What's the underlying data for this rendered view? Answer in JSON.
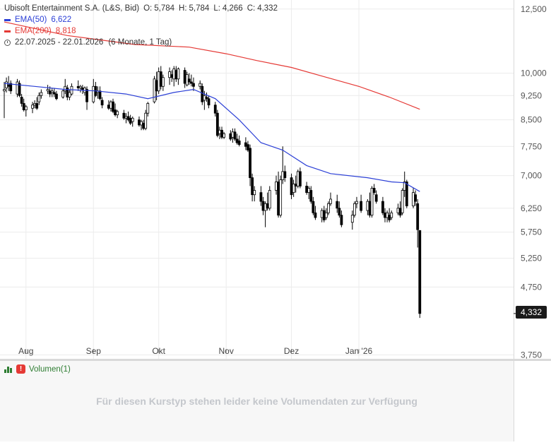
{
  "legend": {
    "title": "Ubisoft Entertainment S.A. (L&S, Bid)",
    "o_label": "O:",
    "o_value": "5,784",
    "h_label": "H:",
    "h_value": "5,784",
    "l_label": "L:",
    "l_value": "4,266",
    "c_label": "C:",
    "c_value": "4,332",
    "ema50_label": "EMA(50)",
    "ema50_value": "6,622",
    "ema200_label": "EMA(200)",
    "ema200_value": "8,818",
    "range": "22.07.2025 - 22.01.2026",
    "range_detail": "(6 Monate, 1 Tag)"
  },
  "last_price": "4,332",
  "volume_panel": {
    "label": "Volumen(1)",
    "message": "Für diesen Kurstyp stehen leider keine Volumendaten zur Verfügung"
  },
  "colors": {
    "ema50": "#2b3fd6",
    "ema200": "#e53935",
    "candle": "#000000",
    "grid": "#ececec"
  },
  "chart_data": {
    "type": "candlestick",
    "y_scale": "log",
    "ylim": [
      3.7,
      12.9
    ],
    "y_ticks": [
      "12,500",
      "10,000",
      "9,250",
      "8,500",
      "7,750",
      "7,000",
      "6,250",
      "5,750",
      "5,250",
      "4,750",
      "3,750"
    ],
    "y_tick_values": [
      12.5,
      10.0,
      9.25,
      8.5,
      7.75,
      7.0,
      6.25,
      5.75,
      5.25,
      4.75,
      3.75
    ],
    "x_ticks": [
      "Aug",
      "Sep",
      "Okt",
      "Nov",
      "Dez",
      "Jan '26"
    ],
    "x_tick_dates": [
      "2025-08-01",
      "2025-09-01",
      "2025-10-01",
      "2025-11-01",
      "2025-12-01",
      "2026-01-01"
    ],
    "date_range": [
      "2025-07-22",
      "2026-01-22"
    ],
    "candles": [
      [
        "2025-07-22",
        9.4,
        9.7,
        8.55,
        9.45
      ],
      [
        "2025-07-23",
        9.5,
        9.85,
        9.35,
        9.7
      ],
      [
        "2025-07-24",
        9.6,
        9.9,
        9.4,
        9.55
      ],
      [
        "2025-07-25",
        9.65,
        9.75,
        9.3,
        9.4
      ],
      [
        "2025-07-28",
        9.3,
        9.8,
        9.2,
        9.7
      ],
      [
        "2025-07-29",
        9.65,
        9.75,
        9.2,
        9.25
      ],
      [
        "2025-07-30",
        9.2,
        9.3,
        8.9,
        9.0
      ],
      [
        "2025-07-31",
        9.0,
        9.15,
        8.75,
        8.8
      ],
      [
        "2025-08-01",
        8.8,
        8.95,
        8.6,
        8.9
      ],
      [
        "2025-08-04",
        8.85,
        9.05,
        8.7,
        8.95
      ],
      [
        "2025-08-05",
        8.95,
        9.1,
        8.85,
        9.0
      ],
      [
        "2025-08-06",
        9.0,
        9.2,
        8.8,
        8.85
      ],
      [
        "2025-08-07",
        9.05,
        9.35,
        8.95,
        9.25
      ],
      [
        "2025-08-08",
        9.25,
        9.45,
        9.15,
        9.35
      ],
      [
        "2025-08-11",
        9.4,
        9.6,
        9.3,
        9.45
      ],
      [
        "2025-08-12",
        9.4,
        9.55,
        9.2,
        9.3
      ],
      [
        "2025-08-13",
        9.35,
        9.5,
        9.2,
        9.4
      ],
      [
        "2025-08-14",
        9.35,
        9.5,
        9.2,
        9.3
      ],
      [
        "2025-08-15",
        9.3,
        9.4,
        9.1,
        9.15
      ],
      [
        "2025-08-18",
        9.2,
        9.45,
        9.15,
        9.4
      ],
      [
        "2025-08-19",
        9.4,
        9.8,
        9.3,
        9.55
      ],
      [
        "2025-08-20",
        9.5,
        9.6,
        9.1,
        9.2
      ],
      [
        "2025-08-21",
        9.2,
        9.45,
        9.1,
        9.35
      ],
      [
        "2025-08-22",
        9.3,
        9.65,
        9.25,
        9.55
      ],
      [
        "2025-08-25",
        9.55,
        9.75,
        9.4,
        9.5
      ],
      [
        "2025-08-26",
        9.5,
        9.6,
        9.35,
        9.55
      ],
      [
        "2025-08-27",
        9.5,
        9.6,
        9.3,
        9.45
      ],
      [
        "2025-08-28",
        9.35,
        9.55,
        9.25,
        9.5
      ],
      [
        "2025-08-29",
        9.45,
        9.55,
        8.8,
        9.05
      ],
      [
        "2025-09-01",
        9.05,
        9.8,
        9.0,
        9.55
      ],
      [
        "2025-09-02",
        9.55,
        9.7,
        9.2,
        9.25
      ],
      [
        "2025-09-03",
        9.35,
        9.55,
        9.15,
        9.4
      ],
      [
        "2025-09-04",
        9.4,
        9.55,
        9.1,
        9.15
      ],
      [
        "2025-09-05",
        9.1,
        9.2,
        8.85,
        8.95
      ],
      [
        "2025-09-08",
        8.95,
        9.1,
        8.8,
        8.85
      ],
      [
        "2025-09-09",
        8.85,
        9.1,
        8.75,
        9.05
      ],
      [
        "2025-09-10",
        9.05,
        9.15,
        8.7,
        8.75
      ],
      [
        "2025-09-11",
        8.8,
        9.0,
        8.6,
        8.65
      ],
      [
        "2025-09-12",
        8.65,
        8.8,
        8.55,
        8.75
      ],
      [
        "2025-09-15",
        8.7,
        8.8,
        8.5,
        8.55
      ],
      [
        "2025-09-16",
        8.55,
        8.7,
        8.4,
        8.6
      ],
      [
        "2025-09-17",
        8.6,
        8.75,
        8.45,
        8.5
      ],
      [
        "2025-09-18",
        8.55,
        8.65,
        8.35,
        8.4
      ],
      [
        "2025-09-19",
        8.45,
        8.6,
        8.3,
        8.55
      ],
      [
        "2025-09-22",
        8.5,
        8.6,
        8.3,
        8.35
      ],
      [
        "2025-09-23",
        8.35,
        8.5,
        8.2,
        8.45
      ],
      [
        "2025-09-24",
        8.4,
        8.5,
        8.2,
        8.25
      ],
      [
        "2025-09-25",
        8.25,
        8.8,
        8.2,
        8.7
      ],
      [
        "2025-09-26",
        8.7,
        9.05,
        8.6,
        9.0
      ],
      [
        "2025-09-29",
        9.05,
        9.9,
        9.0,
        9.8
      ],
      [
        "2025-09-30",
        9.75,
        10.05,
        9.1,
        9.4
      ],
      [
        "2025-10-01",
        9.4,
        10.2,
        9.3,
        10.05
      ],
      [
        "2025-10-02",
        10.05,
        10.25,
        9.45,
        9.55
      ],
      [
        "2025-10-03",
        9.55,
        9.95,
        9.4,
        9.85
      ],
      [
        "2025-10-06",
        9.85,
        10.2,
        9.6,
        10.05
      ],
      [
        "2025-10-07",
        9.95,
        10.1,
        9.7,
        9.85
      ],
      [
        "2025-10-08",
        9.8,
        10.25,
        9.55,
        10.15
      ],
      [
        "2025-10-09",
        10.1,
        10.25,
        9.7,
        9.8
      ],
      [
        "2025-10-10",
        9.8,
        10.2,
        9.6,
        10.15
      ],
      [
        "2025-10-13",
        10.1,
        10.2,
        9.5,
        9.65
      ],
      [
        "2025-10-14",
        9.6,
        10.05,
        9.55,
        9.95
      ],
      [
        "2025-10-15",
        9.8,
        10.0,
        9.6,
        9.7
      ],
      [
        "2025-10-16",
        9.7,
        9.95,
        9.55,
        9.65
      ],
      [
        "2025-10-17",
        9.65,
        9.85,
        9.4,
        9.55
      ],
      [
        "2025-10-20",
        9.55,
        9.75,
        9.45,
        9.65
      ],
      [
        "2025-10-21",
        9.55,
        9.65,
        8.95,
        9.05
      ],
      [
        "2025-10-22",
        9.1,
        9.4,
        8.8,
        9.25
      ],
      [
        "2025-10-23",
        9.2,
        9.35,
        9.05,
        9.15
      ],
      [
        "2025-10-24",
        9.15,
        9.25,
        8.85,
        8.95
      ],
      [
        "2025-10-27",
        8.95,
        9.05,
        8.6,
        8.7
      ],
      [
        "2025-10-28",
        8.7,
        8.8,
        8.0,
        8.05
      ],
      [
        "2025-10-29",
        8.1,
        8.3,
        7.95,
        8.2
      ],
      [
        "2025-10-30",
        8.2,
        8.3,
        7.95,
        8.0
      ],
      [
        "2025-10-31",
        8.0,
        8.15,
        7.95,
        8.1
      ],
      [
        "2025-11-03",
        8.1,
        8.2,
        7.9,
        7.95
      ],
      [
        "2025-11-04",
        8.0,
        8.25,
        7.85,
        8.15
      ],
      [
        "2025-11-05",
        8.15,
        8.25,
        7.9,
        7.95
      ],
      [
        "2025-11-06",
        7.95,
        8.1,
        7.8,
        7.85
      ],
      [
        "2025-11-07",
        7.9,
        8.05,
        7.75,
        7.8
      ],
      [
        "2025-11-10",
        7.85,
        8.0,
        7.65,
        7.75
      ],
      [
        "2025-11-11",
        7.8,
        7.9,
        7.6,
        7.65
      ],
      [
        "2025-11-12",
        7.7,
        7.8,
        6.75,
        6.95
      ],
      [
        "2025-11-13",
        6.95,
        7.05,
        6.4,
        6.55
      ],
      [
        "2025-11-14",
        6.55,
        6.75,
        6.4,
        6.65
      ],
      [
        "2025-11-17",
        6.6,
        6.75,
        6.3,
        6.4
      ],
      [
        "2025-11-18",
        6.4,
        6.5,
        6.1,
        6.2
      ],
      [
        "2025-11-19",
        6.2,
        6.4,
        5.85,
        6.35
      ],
      [
        "2025-11-20",
        6.35,
        6.6,
        6.2,
        6.25
      ],
      [
        "2025-11-21",
        6.25,
        6.75,
        6.2,
        6.65
      ],
      [
        "2025-11-24",
        6.65,
        7.0,
        6.55,
        6.85
      ],
      [
        "2025-11-25",
        6.85,
        7.1,
        6.05,
        6.1
      ],
      [
        "2025-11-26",
        6.1,
        7.0,
        6.05,
        6.9
      ],
      [
        "2025-11-27",
        6.9,
        7.75,
        6.8,
        7.1
      ],
      [
        "2025-11-28",
        7.1,
        7.25,
        6.85,
        6.95
      ],
      [
        "2025-12-01",
        6.95,
        7.05,
        6.45,
        6.55
      ],
      [
        "2025-12-02",
        6.6,
        6.9,
        6.5,
        6.8
      ],
      [
        "2025-12-03",
        6.8,
        7.0,
        6.6,
        6.75
      ],
      [
        "2025-12-04",
        6.75,
        7.15,
        6.7,
        7.1
      ],
      [
        "2025-12-05",
        7.1,
        7.2,
        6.7,
        6.75
      ],
      [
        "2025-12-08",
        6.75,
        6.85,
        6.55,
        6.6
      ],
      [
        "2025-12-09",
        6.6,
        6.75,
        6.45,
        6.7
      ],
      [
        "2025-12-10",
        6.65,
        6.75,
        6.35,
        6.4
      ],
      [
        "2025-12-11",
        6.4,
        6.5,
        6.1,
        6.15
      ],
      [
        "2025-12-12",
        6.15,
        6.3,
        6.0,
        6.05
      ],
      [
        "2025-12-15",
        6.05,
        6.25,
        5.95,
        6.2
      ],
      [
        "2025-12-16",
        6.2,
        6.3,
        5.95,
        6.0
      ],
      [
        "2025-12-17",
        6.05,
        6.25,
        6.0,
        6.15
      ],
      [
        "2025-12-18",
        6.15,
        6.4,
        6.1,
        6.35
      ],
      [
        "2025-12-19",
        6.35,
        6.6,
        6.3,
        6.45
      ],
      [
        "2025-12-22",
        6.4,
        6.55,
        6.15,
        6.25
      ],
      [
        "2025-12-23",
        6.25,
        6.4,
        6.05,
        6.1
      ],
      [
        "2025-12-24",
        6.1,
        6.2,
        5.85,
        5.9
      ],
      [
        "2025-12-29",
        5.95,
        6.2,
        5.8,
        6.1
      ],
      [
        "2025-12-30",
        6.1,
        6.4,
        6.05,
        6.35
      ],
      [
        "2025-12-31",
        6.35,
        6.5,
        6.25,
        6.4
      ],
      [
        "2026-01-02",
        6.4,
        6.55,
        6.15,
        6.2
      ],
      [
        "2026-01-05",
        6.2,
        6.45,
        6.1,
        6.4
      ],
      [
        "2026-01-06",
        6.4,
        6.6,
        6.05,
        6.1
      ],
      [
        "2026-01-07",
        6.1,
        6.75,
        6.05,
        6.7
      ],
      [
        "2026-01-08",
        6.7,
        6.8,
        6.55,
        6.6
      ],
      [
        "2026-01-09",
        6.55,
        6.65,
        6.35,
        6.4
      ],
      [
        "2026-01-12",
        6.4,
        6.5,
        6.1,
        6.15
      ],
      [
        "2026-01-13",
        6.15,
        6.25,
        5.95,
        6.05
      ],
      [
        "2026-01-14",
        6.05,
        6.2,
        5.95,
        6.15
      ],
      [
        "2026-01-15",
        6.1,
        6.25,
        5.95,
        6.0
      ],
      [
        "2026-01-16",
        6.05,
        6.2,
        6.0,
        6.15
      ],
      [
        "2026-01-19",
        6.15,
        6.35,
        6.1,
        6.25
      ],
      [
        "2026-01-20",
        6.25,
        6.4,
        6.05,
        6.1
      ],
      [
        "2026-01-21",
        6.15,
        6.7,
        6.1,
        6.65
      ],
      [
        "2026-01-22",
        6.65,
        7.1,
        6.5,
        6.85
      ],
      [
        "2026-01-23",
        6.85,
        6.9,
        6.25,
        6.3
      ],
      [
        "2026-01-26",
        6.3,
        6.7,
        6.25,
        6.6
      ],
      [
        "2026-01-27",
        6.55,
        6.65,
        6.3,
        6.4
      ],
      [
        "2026-01-28",
        6.35,
        6.45,
        5.45,
        5.8
      ],
      [
        "2026-01-29",
        5.784,
        5.784,
        4.266,
        4.332
      ]
    ],
    "series": [
      {
        "name": "EMA(50)",
        "x": [
          "2025-07-22",
          "2025-08-05",
          "2025-08-19",
          "2025-09-02",
          "2025-09-16",
          "2025-09-26",
          "2025-10-08",
          "2025-10-17",
          "2025-10-27",
          "2025-11-07",
          "2025-11-17",
          "2025-11-27",
          "2025-12-08",
          "2025-12-19",
          "2026-01-05",
          "2026-01-16",
          "2026-01-22",
          "2026-01-29"
        ],
        "y": [
          9.65,
          9.55,
          9.45,
          9.4,
          9.3,
          9.15,
          9.35,
          9.45,
          9.15,
          8.5,
          7.85,
          7.65,
          7.25,
          7.05,
          6.95,
          6.85,
          6.83,
          6.622
        ]
      },
      {
        "name": "EMA(200)",
        "x": [
          "2025-07-22",
          "2025-08-20",
          "2025-09-20",
          "2025-10-15",
          "2025-11-01",
          "2025-11-15",
          "2025-12-01",
          "2025-12-15",
          "2026-01-01",
          "2026-01-15",
          "2026-01-29"
        ],
        "y": [
          11.95,
          11.4,
          11.05,
          10.95,
          10.7,
          10.45,
          10.2,
          9.9,
          9.55,
          9.2,
          8.818
        ]
      }
    ]
  }
}
